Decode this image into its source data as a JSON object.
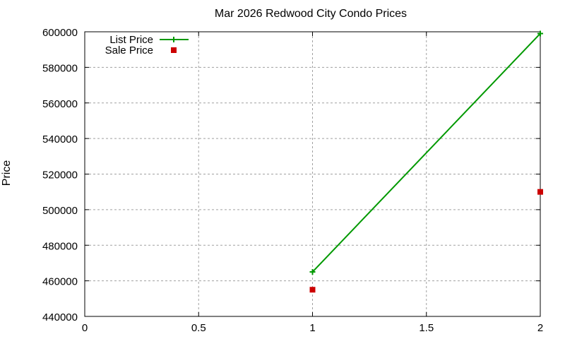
{
  "chart_data": {
    "type": "line",
    "title": "Mar 2026 Redwood City Condo Prices",
    "xlabel": "",
    "ylabel": "Price",
    "xlim": [
      0,
      2
    ],
    "ylim": [
      440000,
      600000
    ],
    "x_ticks": [
      "0",
      "0.5",
      "1",
      "1.5",
      "2"
    ],
    "y_ticks": [
      "440000",
      "460000",
      "480000",
      "500000",
      "520000",
      "540000",
      "560000",
      "580000",
      "600000"
    ],
    "grid": true,
    "legend_position": "top-left",
    "series": [
      {
        "name": "List Price",
        "style": "line+points",
        "color": "#009900",
        "marker": "plus",
        "x": [
          1,
          2
        ],
        "values": [
          465000,
          599000
        ]
      },
      {
        "name": "Sale Price",
        "style": "points",
        "color": "#cc0000",
        "marker": "square",
        "x": [
          1,
          2
        ],
        "values": [
          455000,
          510000
        ]
      }
    ]
  }
}
